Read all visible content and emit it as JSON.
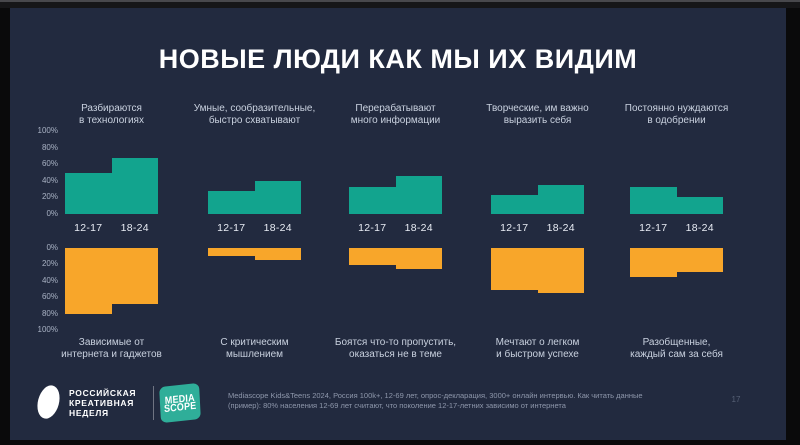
{
  "slide": {
    "title": "НОВЫЕ ЛЮДИ КАК МЫ ИХ ВИДИМ",
    "page_number": "17",
    "background": "#222A3F"
  },
  "chart_data": {
    "type": "bar",
    "categories": [
      "12-17",
      "18-24"
    ],
    "ylim": [
      0,
      100
    ],
    "top_axis_ticks": [
      "100%",
      "80%",
      "60%",
      "40%",
      "20%",
      "0%"
    ],
    "bottom_axis_ticks": [
      "0%",
      "20%",
      "40%",
      "60%",
      "80%",
      "100%"
    ],
    "colors": {
      "positive": "#12A48E",
      "negative": "#F8A62A"
    },
    "groups": [
      {
        "positive_trait": [
          "Разбираются",
          "в технологиях"
        ],
        "negative_trait": [
          "Зависимые от",
          "интернета и гаджетов"
        ],
        "positive_values": [
          50,
          67
        ],
        "negative_values": [
          80,
          68
        ]
      },
      {
        "positive_trait": [
          "Умные, сообразительные,",
          "быстро схватывают"
        ],
        "negative_trait": [
          "С критическим",
          "мышлением"
        ],
        "positive_values": [
          28,
          40
        ],
        "negative_values": [
          10,
          15
        ]
      },
      {
        "positive_trait": [
          "Перерабатывают",
          "много информации"
        ],
        "negative_trait": [
          "Боятся что-то пропустить,",
          "оказаться не в теме"
        ],
        "positive_values": [
          33,
          46
        ],
        "negative_values": [
          21,
          25
        ]
      },
      {
        "positive_trait": [
          "Творческие, им важно",
          "выразить себя"
        ],
        "negative_trait": [
          "Мечтают о легком",
          "и быстром успехе"
        ],
        "positive_values": [
          23,
          35
        ],
        "negative_values": [
          51,
          55
        ]
      },
      {
        "positive_trait": [
          "Постоянно нуждаются",
          "в одобрении"
        ],
        "negative_trait": [
          "Разобщенные,",
          "каждый сам за себя"
        ],
        "positive_values": [
          32,
          21
        ],
        "negative_values": [
          35,
          29
        ]
      }
    ]
  },
  "footer": {
    "logo1_lines": [
      "РОССИЙСКАЯ",
      "КРЕАТИВНАЯ",
      "НЕДЕЛЯ"
    ],
    "logo2_lines": [
      "MEDIA",
      "SCOPE"
    ],
    "source_line1": "Mediascope Kids&Teens 2024, Россия 100k+, 12-69 лет, опрос-декларация, 3000+ онлайн интервью. Как читать данные",
    "source_line2": "(пример):  80% населения 12-69 лет считают, что поколение 12-17-летних зависимо от интернета"
  }
}
